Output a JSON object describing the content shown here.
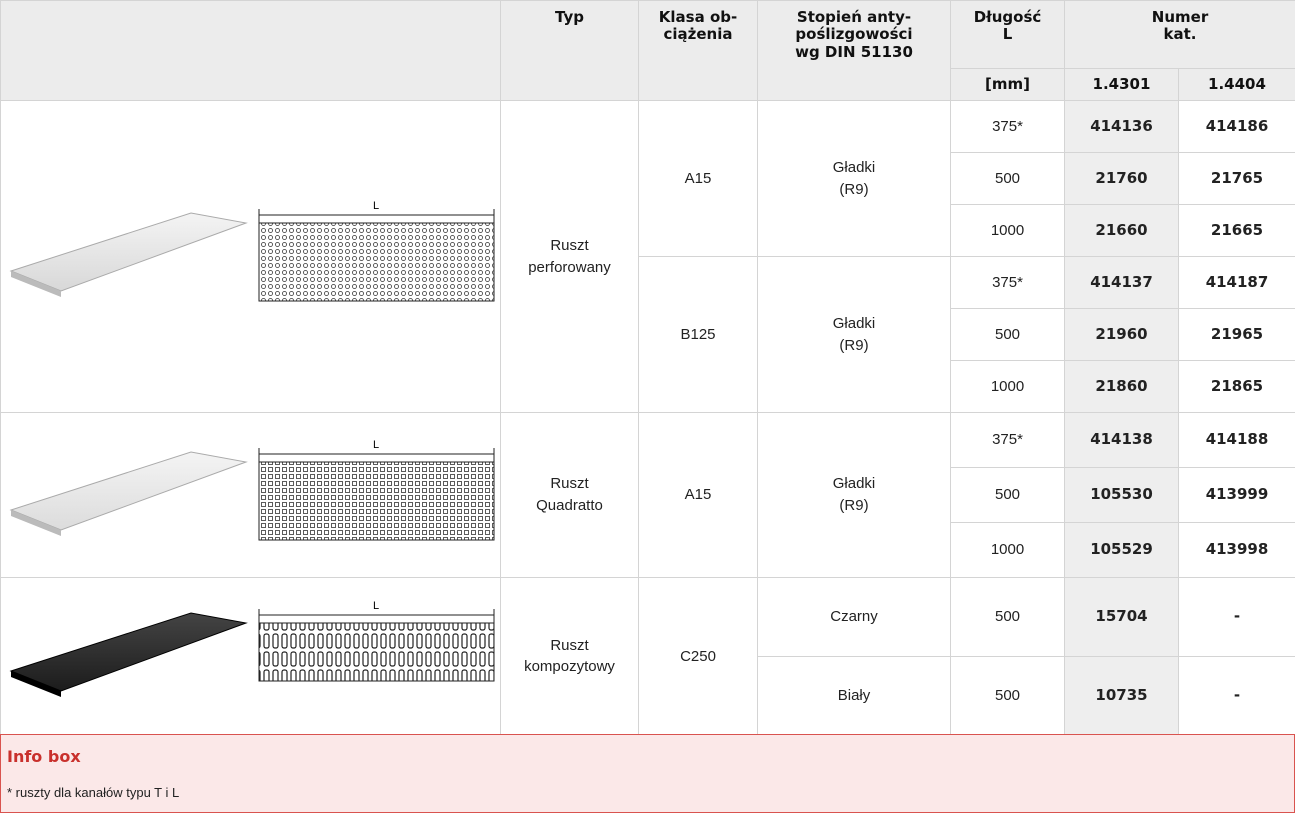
{
  "header": {
    "typ": "Typ",
    "klasa": "Klasa ob-\nciążenia",
    "stopien": "Stopień anty-\npoślizgowości\nwg DIN 51130",
    "dlugosc": "Długość\nL",
    "unit": "[mm]",
    "numer": "Numer\nkat.",
    "cols": [
      "1.4301",
      "1.4404"
    ]
  },
  "groups": [
    {
      "drawing_label": "L",
      "type": "Ruszt\nperforowany",
      "classes": [
        {
          "klasa": "A15",
          "finishes": [
            {
              "stopien": "Gładki\n(R9)",
              "rows": [
                {
                  "length": "375*",
                  "n1": "414136",
                  "n2": "414186"
                },
                {
                  "length": "500",
                  "n1": "21760",
                  "n2": "21765"
                },
                {
                  "length": "1000",
                  "n1": "21660",
                  "n2": "21665"
                }
              ]
            }
          ]
        },
        {
          "klasa": "B125",
          "finishes": [
            {
              "stopien": "Gładki\n(R9)",
              "rows": [
                {
                  "length": "375*",
                  "n1": "414137",
                  "n2": "414187"
                },
                {
                  "length": "500",
                  "n1": "21960",
                  "n2": "21965"
                },
                {
                  "length": "1000",
                  "n1": "21860",
                  "n2": "21865"
                }
              ]
            }
          ]
        }
      ]
    },
    {
      "drawing_label": "L",
      "type": "Ruszt\nQuadratto",
      "classes": [
        {
          "klasa": "A15",
          "finishes": [
            {
              "stopien": "Gładki\n(R9)",
              "rows": [
                {
                  "length": "375*",
                  "n1": "414138",
                  "n2": "414188"
                },
                {
                  "length": "500",
                  "n1": "105530",
                  "n2": "413999"
                },
                {
                  "length": "1000",
                  "n1": "105529",
                  "n2": "413998"
                }
              ]
            }
          ]
        }
      ]
    },
    {
      "drawing_label": "L",
      "type": "Ruszt\nkompozytowy",
      "classes": [
        {
          "klasa": "C250",
          "finishes": [
            {
              "stopien": "Czarny",
              "rows": [
                {
                  "length": "500",
                  "n1": "15704",
                  "n2": "-"
                }
              ]
            },
            {
              "stopien": "Biały",
              "rows": [
                {
                  "length": "500",
                  "n1": "10735",
                  "n2": "-"
                }
              ]
            }
          ]
        }
      ]
    }
  ],
  "info": {
    "title": "Info box",
    "text": "* ruszty dla kanałów typu T i L"
  }
}
